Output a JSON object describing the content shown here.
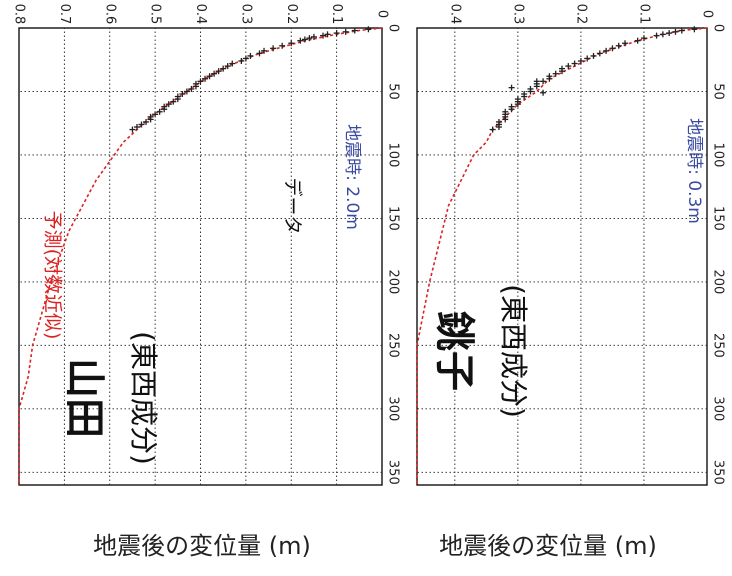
{
  "chart_data": [
    {
      "type": "scatter",
      "station": "山田",
      "component": "(東西成分)",
      "ylabel": "地震後の変位量 (m)",
      "x_ticks": [
        0,
        50,
        100,
        150,
        200,
        250,
        300,
        350
      ],
      "y_ticks": [
        0,
        0.1,
        0.2,
        0.3,
        0.4,
        0.5,
        0.6,
        0.7,
        0.8
      ],
      "y_tick_labels": [
        "0",
        "0.1",
        "0.2",
        "0.3",
        "0.4",
        "0.5",
        "0.6",
        "0.7",
        "0.8"
      ],
      "xlim": [
        0,
        360
      ],
      "ylim": [
        0,
        0.8
      ],
      "annotations": {
        "prediction": "予測(対数近似)",
        "data": "データ",
        "coseismic": "地震時: 2.0m"
      },
      "series": [
        {
          "name": "予測(対数近似)",
          "style": "dashed-line",
          "color": "#dd2222",
          "x": [
            0,
            2,
            5,
            10,
            15,
            20,
            30,
            40,
            50,
            60,
            70,
            80,
            90,
            100,
            120,
            140,
            160,
            180,
            200,
            225,
            250,
            275,
            300,
            330,
            360
          ],
          "y": [
            0.0,
            0.05,
            0.1,
            0.17,
            0.22,
            0.27,
            0.34,
            0.39,
            0.43,
            0.47,
            0.51,
            0.54,
            0.57,
            0.59,
            0.63,
            0.66,
            0.69,
            0.71,
            0.73,
            0.75,
            0.77,
            0.78,
            0.8,
            0.82,
            0.84
          ]
        },
        {
          "name": "データ",
          "style": "points",
          "color": "#222222",
          "x": [
            1,
            2,
            3,
            4,
            5,
            6,
            7,
            8,
            9,
            10,
            12,
            14,
            16,
            18,
            20,
            22,
            24,
            26,
            28,
            30,
            32,
            34,
            36,
            38,
            40,
            42,
            44,
            46,
            48,
            50,
            52,
            54,
            56,
            58,
            60,
            62,
            64,
            66,
            68,
            70,
            72,
            74,
            76,
            78,
            80
          ],
          "y": [
            0.03,
            0.06,
            0.08,
            0.1,
            0.12,
            0.13,
            0.15,
            0.16,
            0.17,
            0.18,
            0.2,
            0.22,
            0.24,
            0.26,
            0.27,
            0.29,
            0.3,
            0.31,
            0.33,
            0.34,
            0.35,
            0.36,
            0.37,
            0.38,
            0.39,
            0.4,
            0.41,
            0.41,
            0.42,
            0.43,
            0.44,
            0.45,
            0.45,
            0.46,
            0.47,
            0.48,
            0.48,
            0.49,
            0.5,
            0.51,
            0.51,
            0.52,
            0.53,
            0.54,
            0.55
          ]
        }
      ]
    },
    {
      "type": "scatter",
      "station": "銚子",
      "component": "(東西成分)",
      "ylabel": "地震後の変位量 (m)",
      "x_ticks": [
        0,
        50,
        100,
        150,
        200,
        250,
        300,
        350
      ],
      "y_ticks": [
        0,
        0.1,
        0.2,
        0.3,
        0.4
      ],
      "y_tick_labels": [
        "0",
        "0.1",
        "0.2",
        "0.3",
        "0.4"
      ],
      "xlim": [
        0,
        360
      ],
      "ylim": [
        0,
        0.46
      ],
      "annotations": {
        "coseismic": "地震時: 0.3m"
      },
      "series": [
        {
          "name": "予測",
          "style": "dashed-line",
          "color": "#dd2222",
          "x": [
            0,
            2,
            5,
            10,
            15,
            20,
            30,
            40,
            50,
            60,
            70,
            80,
            90,
            100,
            120,
            140,
            160,
            180,
            200,
            225,
            250,
            275,
            300,
            330,
            360
          ],
          "y": [
            0.0,
            0.04,
            0.07,
            0.11,
            0.14,
            0.17,
            0.21,
            0.25,
            0.27,
            0.3,
            0.32,
            0.34,
            0.35,
            0.37,
            0.39,
            0.41,
            0.42,
            0.43,
            0.44,
            0.45,
            0.46,
            0.47,
            0.48,
            0.49,
            0.5
          ]
        },
        {
          "name": "データ",
          "style": "points",
          "color": "#222222",
          "x": [
            1,
            2,
            3,
            4,
            5,
            6,
            8,
            10,
            12,
            14,
            16,
            18,
            20,
            22,
            24,
            26,
            28,
            30,
            32,
            34,
            36,
            38,
            40,
            42,
            44,
            46,
            48,
            50,
            52,
            54,
            56,
            58,
            60,
            62,
            64,
            66,
            68,
            70,
            72,
            74,
            76,
            78,
            80,
            42,
            47,
            51
          ],
          "y": [
            0.02,
            0.04,
            0.05,
            0.06,
            0.07,
            0.08,
            0.1,
            0.11,
            0.13,
            0.14,
            0.15,
            0.16,
            0.17,
            0.18,
            0.19,
            0.2,
            0.21,
            0.22,
            0.23,
            0.23,
            0.24,
            0.25,
            0.25,
            0.26,
            0.27,
            0.27,
            0.28,
            0.28,
            0.29,
            0.29,
            0.3,
            0.3,
            0.3,
            0.31,
            0.31,
            0.32,
            0.32,
            0.32,
            0.32,
            0.33,
            0.33,
            0.33,
            0.34,
            0.27,
            0.31,
            0.26
          ]
        }
      ]
    }
  ]
}
